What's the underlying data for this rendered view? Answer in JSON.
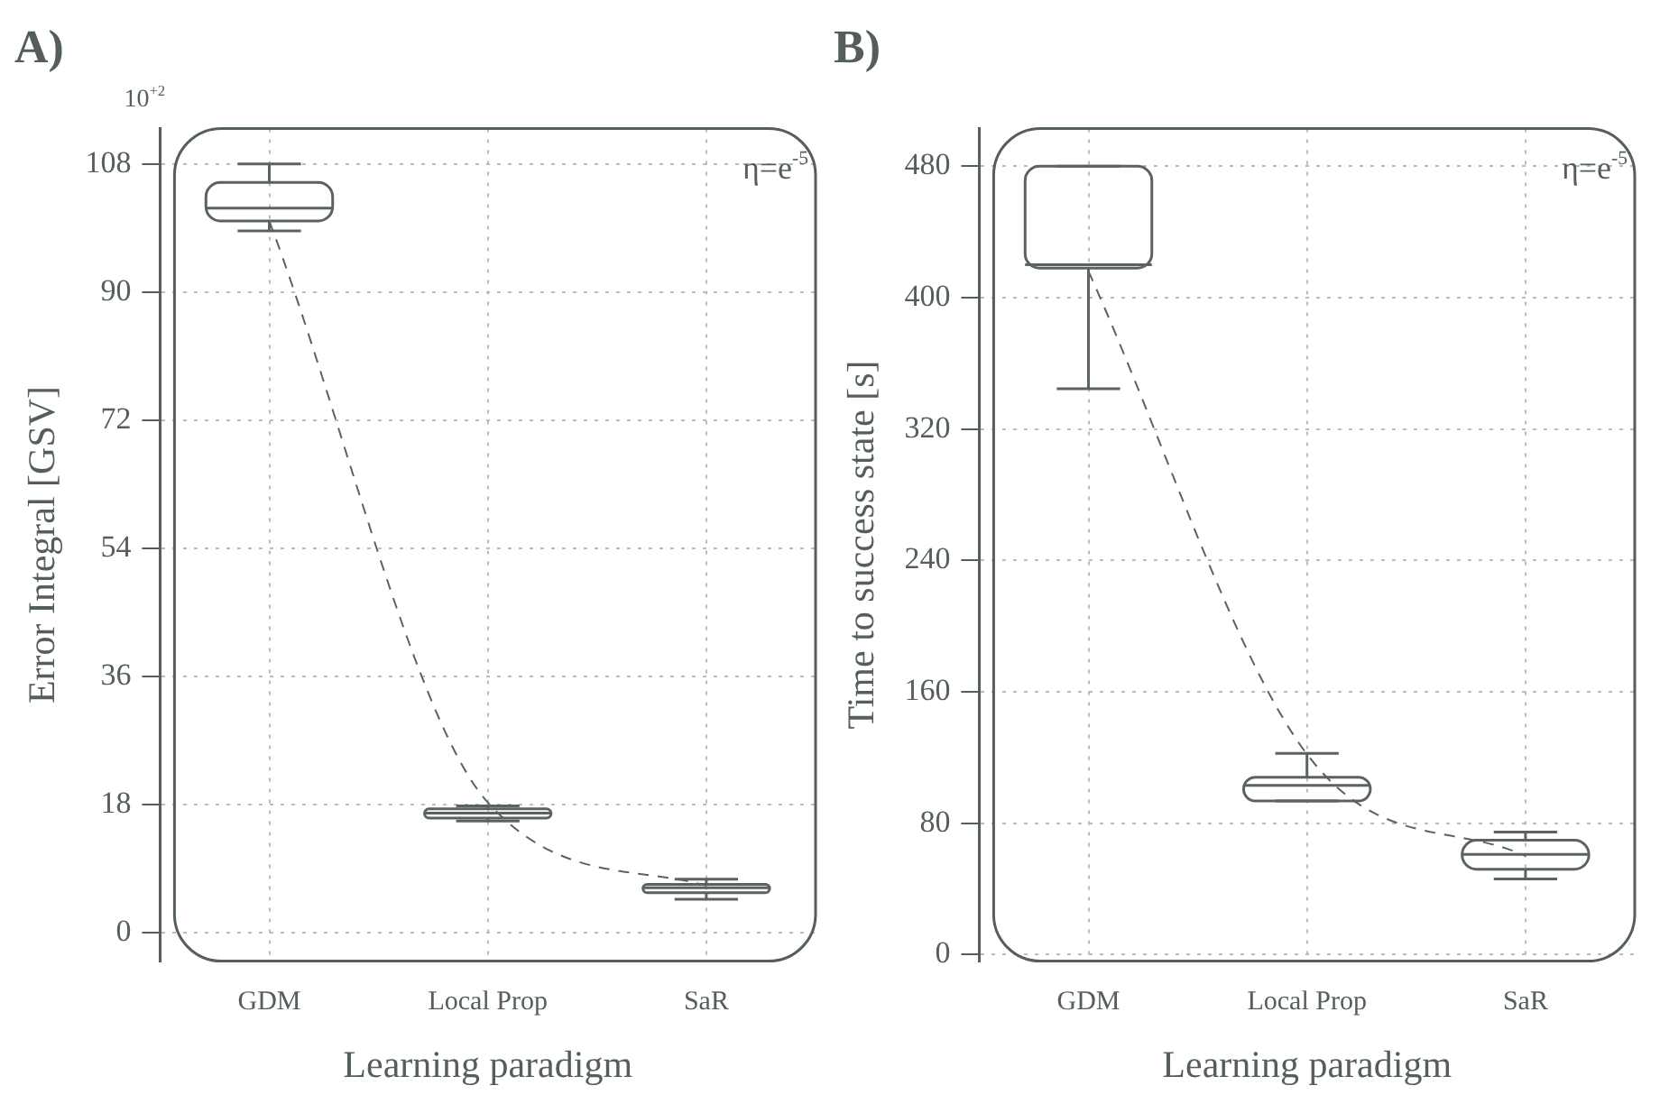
{
  "chart_data": [
    {
      "type": "box",
      "title": "A)",
      "xlabel": "Learning paradigm",
      "ylabel": "Error Integral [GSV]",
      "categories": [
        "GDM",
        "Local Prop",
        "SaR"
      ],
      "color": "#5a6262",
      "grid": true,
      "ylim": [
        -4,
        113
      ],
      "yticks": [
        0,
        18,
        36,
        54,
        72,
        90,
        108
      ],
      "boxes": [
        {
          "low": 98.6,
          "q1": 100,
          "median": 101.8,
          "q3": 105.4,
          "high": 108
        },
        {
          "low": 15.7,
          "q1": 16.1,
          "median": 16.8,
          "q3": 17.4,
          "high": 17.8
        },
        {
          "low": 4.7,
          "q1": 5.6,
          "median": 6.3,
          "q3": 6.8,
          "high": 7.5
        }
      ],
      "series": [
        {
          "type": "line",
          "x": [
            "GDM",
            "Local Prop",
            "SaR"
          ],
          "values": [
            100,
            18.3,
            6.6
          ],
          "color": "#5a6262",
          "line_style": "dashed",
          "marker": "none"
        }
      ],
      "annotations": [
        "10$^{+2}$",
        "η=e$^{-5}$"
      ]
    },
    {
      "type": "box",
      "title": "B)",
      "xlabel": "Learning paradigm",
      "ylabel": "Time to success state [s]",
      "categories": [
        "GDM",
        "Local Prop",
        "SaR"
      ],
      "color": "#5a6262",
      "grid": true,
      "ylim": [
        -4,
        503
      ],
      "yticks": [
        0,
        80,
        160,
        240,
        320,
        400,
        480
      ],
      "boxes": [
        {
          "low": 344.5,
          "q1": 418,
          "median": 420,
          "q3": 480,
          "high": 480
        },
        {
          "low": 93.5,
          "q1": 93.5,
          "median": 103,
          "q3": 108,
          "high": 122.5
        },
        {
          "low": 46,
          "q1": 52,
          "median": 61,
          "q3": 69.6,
          "high": 74.6
        }
      ],
      "series": [
        {
          "type": "line",
          "x": [
            "GDM",
            "Local Prop",
            "SaR"
          ],
          "values": [
            416,
            122,
            60
          ],
          "color": "#5a6262",
          "line_style": "dashed",
          "marker": "none"
        }
      ],
      "annotations": [
        "η=e$^{-5}$"
      ]
    }
  ]
}
